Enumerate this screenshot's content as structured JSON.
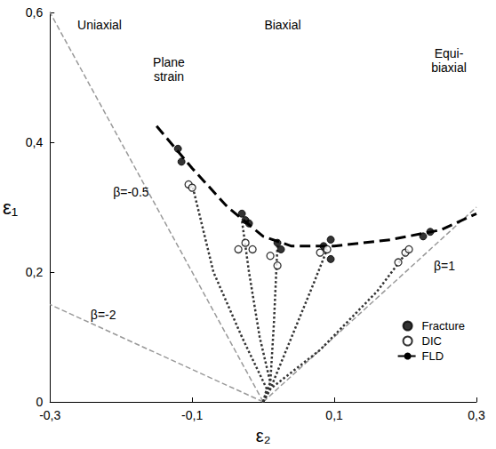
{
  "chart_data": {
    "type": "scatter",
    "xlabel": "ε₂",
    "ylabel": "ε₁",
    "xlim": [
      -0.3,
      0.3
    ],
    "ylim": [
      0,
      0.6
    ],
    "xticks": [
      {
        "value": -0.3,
        "label": "-0,3"
      },
      {
        "value": -0.1,
        "label": "-0,1"
      },
      {
        "value": 0.1,
        "label": "0,1"
      },
      {
        "value": 0.3,
        "label": "0,3"
      }
    ],
    "yticks": [
      0,
      {
        "value": 0.2,
        "label": "0,2"
      },
      {
        "value": 0.4,
        "label": "0,4"
      },
      {
        "value": 0.6,
        "label": "0,6"
      }
    ],
    "grid": false,
    "legend": "lower right",
    "series": [
      {
        "name": "Fracture",
        "type": "scatter",
        "marker": "filled circle",
        "color": "#000000",
        "values": [
          [
            -0.12,
            0.39
          ],
          [
            -0.115,
            0.37
          ],
          [
            -0.03,
            0.29
          ],
          [
            -0.025,
            0.28
          ],
          [
            -0.02,
            0.275
          ],
          [
            0.02,
            0.245
          ],
          [
            0.025,
            0.235
          ],
          [
            0.085,
            0.24
          ],
          [
            0.095,
            0.25
          ],
          [
            0.095,
            0.22
          ],
          [
            0.225,
            0.255
          ],
          [
            0.235,
            0.262
          ]
        ]
      },
      {
        "name": "DIC",
        "type": "scatter",
        "marker": "open circle",
        "color": "#000000",
        "values": [
          [
            -0.105,
            0.335
          ],
          [
            -0.1,
            0.33
          ],
          [
            -0.035,
            0.235
          ],
          [
            -0.025,
            0.245
          ],
          [
            -0.015,
            0.235
          ],
          [
            0.01,
            0.225
          ],
          [
            0.02,
            0.21
          ],
          [
            0.08,
            0.23
          ],
          [
            0.09,
            0.235
          ],
          [
            0.19,
            0.215
          ],
          [
            0.2,
            0.23
          ],
          [
            0.205,
            0.235
          ]
        ]
      },
      {
        "name": "FLD",
        "type": "line",
        "line_style": "dashed",
        "color": "#000000",
        "values": [
          [
            -0.15,
            0.425
          ],
          [
            -0.1,
            0.36
          ],
          [
            -0.05,
            0.3
          ],
          [
            0.0,
            0.255
          ],
          [
            0.04,
            0.24
          ],
          [
            0.1,
            0.24
          ],
          [
            0.18,
            0.25
          ],
          [
            0.25,
            0.265
          ],
          [
            0.3,
            0.29
          ]
        ]
      }
    ],
    "strain_paths": {
      "line_style": "dotted",
      "color": "#333333",
      "values": [
        [
          [
            0.0,
            0.0
          ],
          [
            0.005,
            0.02
          ],
          [
            -0.03,
            0.1
          ],
          [
            -0.07,
            0.2
          ],
          [
            -0.1,
            0.335
          ]
        ],
        [
          [
            0.0,
            0.0
          ],
          [
            0.01,
            0.03
          ],
          [
            -0.005,
            0.1
          ],
          [
            -0.02,
            0.2
          ],
          [
            -0.03,
            0.28
          ]
        ],
        [
          [
            0.0,
            0.0
          ],
          [
            0.01,
            0.03
          ],
          [
            0.015,
            0.12
          ],
          [
            0.02,
            0.24
          ]
        ],
        [
          [
            0.0,
            0.0
          ],
          [
            0.01,
            0.02
          ],
          [
            0.04,
            0.1
          ],
          [
            0.07,
            0.18
          ],
          [
            0.09,
            0.235
          ]
        ],
        [
          [
            0.0,
            0.0
          ],
          [
            0.01,
            0.02
          ],
          [
            0.08,
            0.08
          ],
          [
            0.16,
            0.17
          ],
          [
            0.205,
            0.235
          ]
        ]
      ]
    },
    "reference_lines": [
      {
        "label": "β=-0.5",
        "line_style": "dashed",
        "color": "#999999",
        "values": [
          [
            0.0,
            0.0
          ],
          [
            -0.3,
            0.6
          ]
        ]
      },
      {
        "label": "β=-2",
        "line_style": "dashed",
        "color": "#999999",
        "values": [
          [
            0.0,
            0.0
          ],
          [
            -0.3,
            0.15
          ]
        ]
      },
      {
        "label": "β=1",
        "line_style": "dashed",
        "color": "#999999",
        "values": [
          [
            0.0,
            0.0
          ],
          [
            0.3,
            0.3
          ]
        ]
      }
    ],
    "annotations": [
      "Uniaxial",
      "Plane strain",
      "Biaxial",
      "Equi-biaxial"
    ]
  }
}
